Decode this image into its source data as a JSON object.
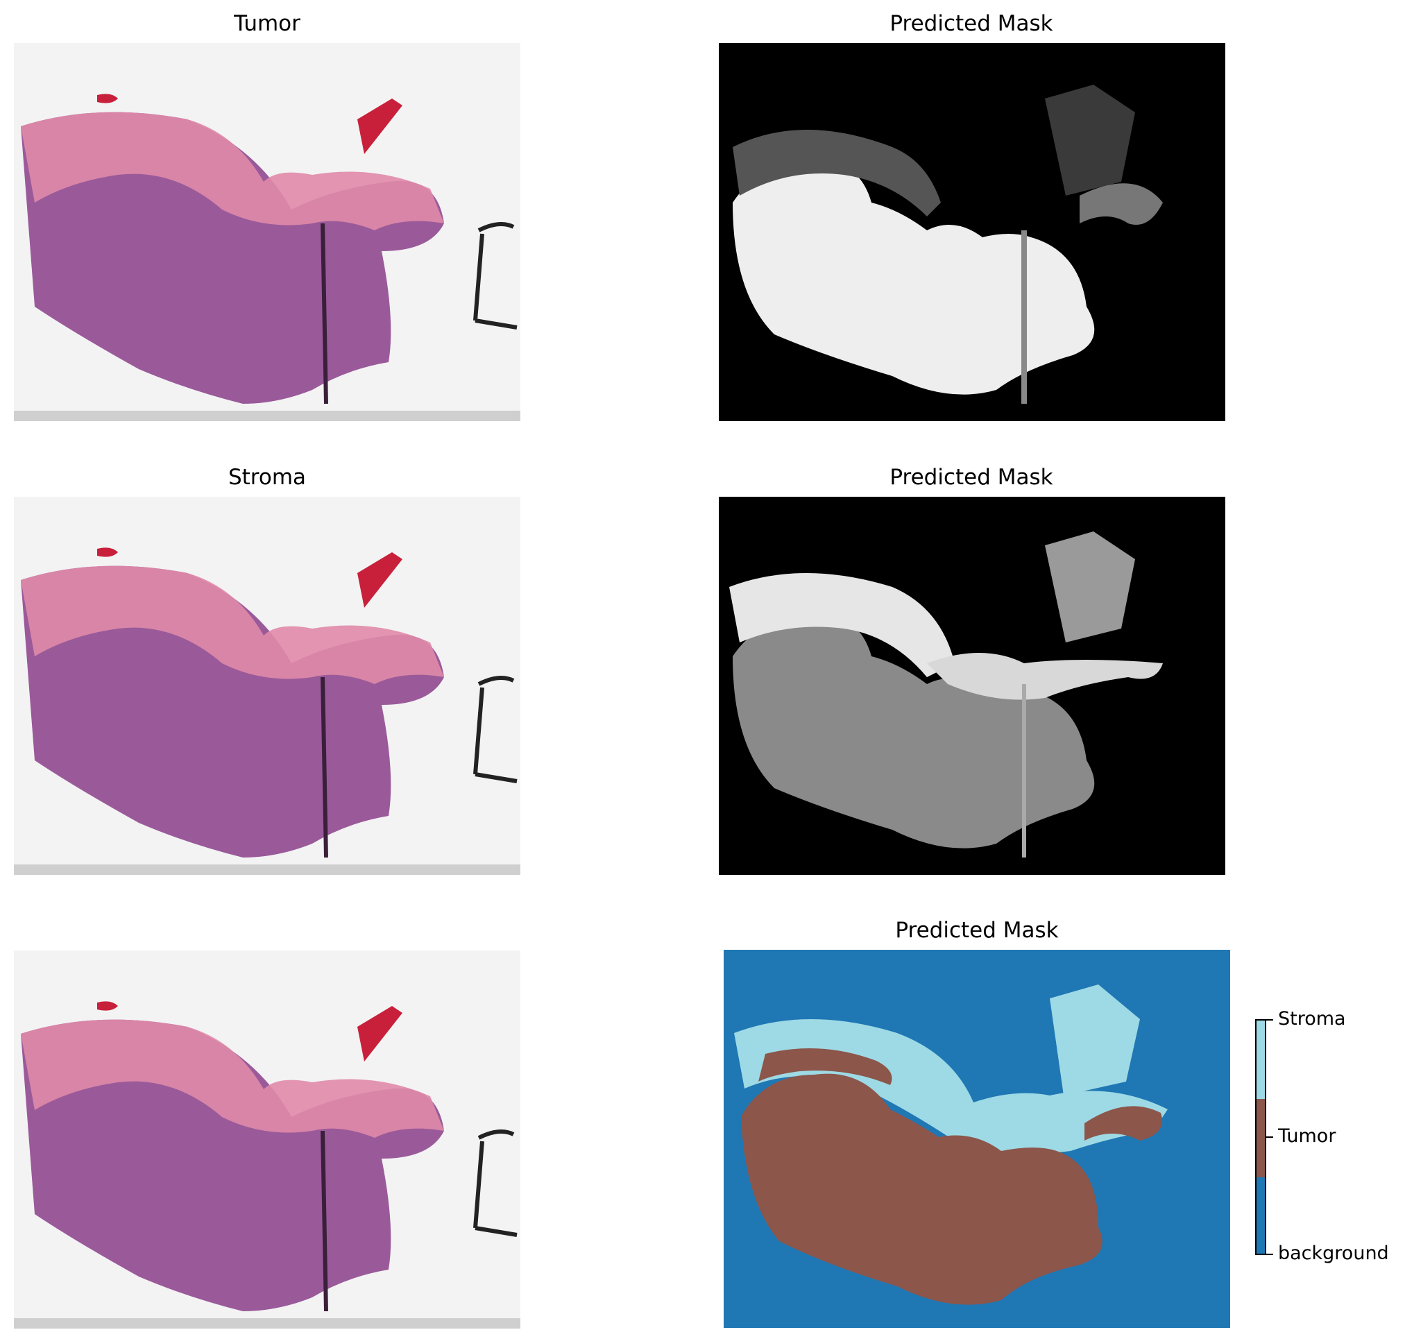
{
  "panels": {
    "row1_left_title": "Tumor",
    "row1_right_title": "Predicted Mask",
    "row2_left_title": "Stroma",
    "row2_right_title": "Predicted Mask",
    "row3_right_title": "Predicted Mask"
  },
  "colorbar": {
    "labels": [
      "background",
      "Tumor",
      "Stroma"
    ],
    "colors": {
      "background": "#1f77b4",
      "Tumor": "#8c564b",
      "Stroma": "#9edae5"
    }
  },
  "icons": {
    "slide_image": "histology-slide-image",
    "mask_image": "grayscale-mask-image",
    "segmentation_image": "segmentation-mask-image"
  }
}
